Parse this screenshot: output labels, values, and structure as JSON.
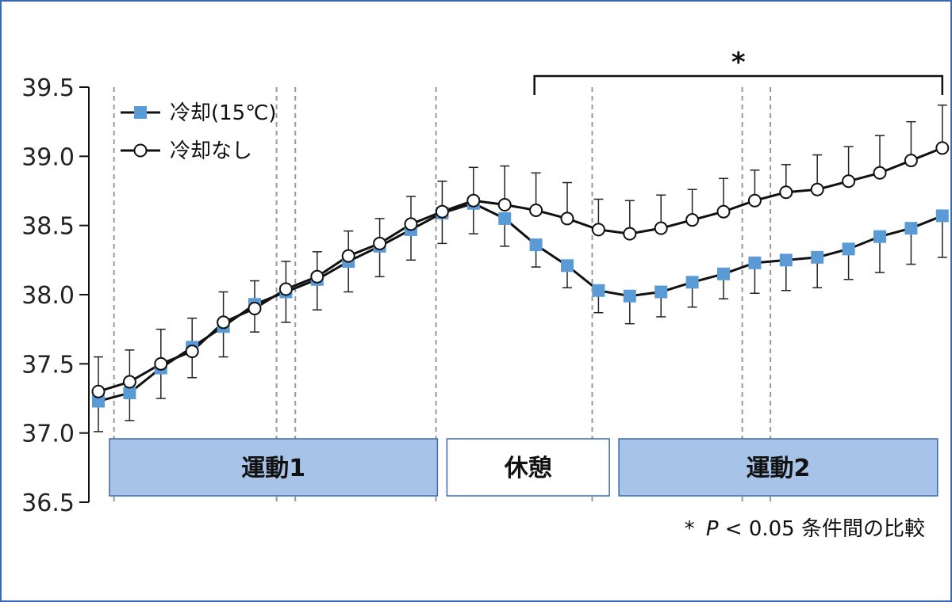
{
  "chart_data": {
    "type": "line",
    "ylim": [
      36.5,
      39.5
    ],
    "yticks": [
      "39.5",
      "39.0",
      "38.5",
      "38.0",
      "37.5",
      "37.0",
      "36.5"
    ],
    "grid": false,
    "legend_position": "top-left",
    "colors": {
      "cooling": "#5b9bd5",
      "no_cooling": "#ffffff",
      "line": "#111111",
      "phase_fill": "#a7c4e8",
      "phase_stroke": "#3a6ab4"
    },
    "series": [
      {
        "name": "冷却(15℃)",
        "values": [
          37.23,
          37.29,
          37.47,
          37.62,
          37.77,
          37.93,
          38.02,
          38.11,
          38.24,
          38.35,
          38.47,
          38.59,
          38.66,
          38.55,
          38.36,
          38.21,
          38.03,
          37.99,
          38.02,
          38.09,
          38.15,
          38.23,
          38.25,
          38.27,
          38.33,
          38.42,
          38.48,
          38.57
        ],
        "err": [
          0.22,
          0.2,
          0.22,
          0.22,
          0.22,
          0.2,
          0.22,
          0.22,
          0.22,
          0.22,
          0.22,
          0.22,
          0.22,
          0.2,
          0.16,
          0.16,
          0.16,
          0.2,
          0.18,
          0.18,
          0.18,
          0.22,
          0.22,
          0.22,
          0.22,
          0.26,
          0.26,
          0.3
        ]
      },
      {
        "name": "冷却なし",
        "values": [
          37.3,
          37.37,
          37.5,
          37.59,
          37.8,
          37.9,
          38.04,
          38.13,
          38.28,
          38.37,
          38.51,
          38.6,
          38.68,
          38.65,
          38.61,
          38.55,
          38.47,
          38.44,
          38.48,
          38.54,
          38.6,
          38.68,
          38.74,
          38.76,
          38.82,
          38.88,
          38.97,
          39.06
        ],
        "err": [
          0.25,
          0.23,
          0.25,
          0.24,
          0.22,
          0.2,
          0.2,
          0.18,
          0.18,
          0.18,
          0.2,
          0.22,
          0.24,
          0.28,
          0.27,
          0.26,
          0.22,
          0.24,
          0.24,
          0.22,
          0.24,
          0.22,
          0.2,
          0.25,
          0.25,
          0.27,
          0.28,
          0.31
        ]
      }
    ],
    "phases": [
      {
        "label": "運動1",
        "start": 0,
        "end": 11,
        "filled": true
      },
      {
        "label": "休憩",
        "start": 11,
        "end": 16.5,
        "filled": false
      },
      {
        "label": "運動2",
        "start": 16.5,
        "end": 27,
        "filled": true
      }
    ],
    "vlines": [
      0.5,
      5.7,
      6.3,
      10.8,
      15.8,
      20.6,
      21.5
    ],
    "significance": {
      "symbol": "*",
      "from": 13.9,
      "to": 27
    },
    "note": {
      "star": "*",
      "italic": "P",
      "rest": "< 0.05 条件間の比較"
    }
  }
}
